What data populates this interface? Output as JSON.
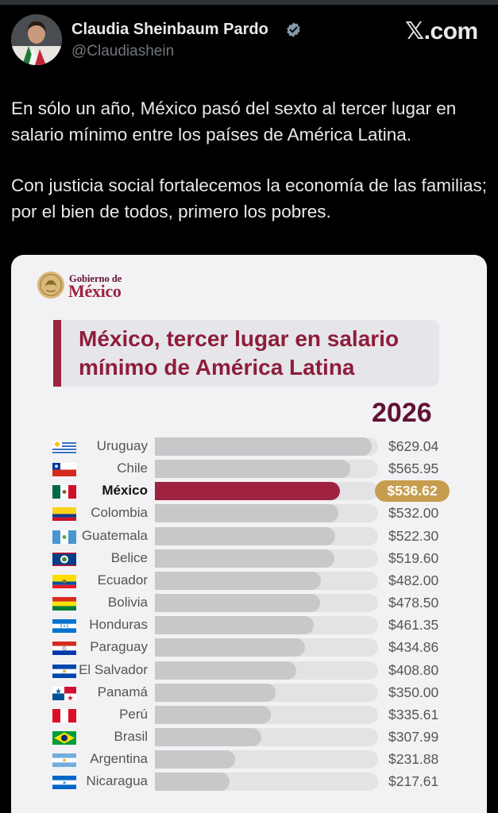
{
  "post": {
    "author_name": "Claudia Sheinbaum Pardo",
    "handle": "@Claudiashein",
    "brand": "𝕏.com",
    "paragraphs": [
      "En sólo un año, México pasó del sexto al tercer lugar en salario mínimo entre los países de América Latina.",
      "Con justicia social fortalecemos la economía de las familias; por el bien de todos, primero los pobres."
    ],
    "colors": {
      "background": "#000000",
      "text": "#e7e9ea",
      "muted": "#71767b",
      "verified": "#829aab"
    }
  },
  "graphic": {
    "logo_small": "Gobierno de",
    "logo_big": "México",
    "title": "México, tercer lugar en salario mínimo de América Latina",
    "year": "2026",
    "colors": {
      "guinda": "#9f2241",
      "gold": "#c69c4e",
      "bar": "#c8c8cb"
    }
  },
  "chart_data": {
    "type": "bar",
    "orientation": "horizontal",
    "title": "México, tercer lugar en salario mínimo de América Latina",
    "subtitle": "2026",
    "highlight": "México",
    "categories": [
      "Uruguay",
      "Chile",
      "México",
      "Colombia",
      "Guatemala",
      "Belice",
      "Ecuador",
      "Bolivia",
      "Honduras",
      "Paraguay",
      "El Salvador",
      "Panamá",
      "Perú",
      "Brasil",
      "Argentina",
      "Nicaragua"
    ],
    "values": [
      629.04,
      565.95,
      536.62,
      532.0,
      522.3,
      519.6,
      482.0,
      478.5,
      461.35,
      434.86,
      408.8,
      350.0,
      335.61,
      307.99,
      231.88,
      217.61
    ],
    "value_labels": [
      "$629.04",
      "$565.95",
      "$536.62",
      "$532.00",
      "$522.30",
      "$519.60",
      "$482.00",
      "$478.50",
      "$461.35",
      "$434.86",
      "$408.80",
      "$350.00",
      "$335.61",
      "$307.99",
      "$231.88",
      "$217.61"
    ],
    "xlim": [
      0,
      680
    ],
    "grid": false
  }
}
